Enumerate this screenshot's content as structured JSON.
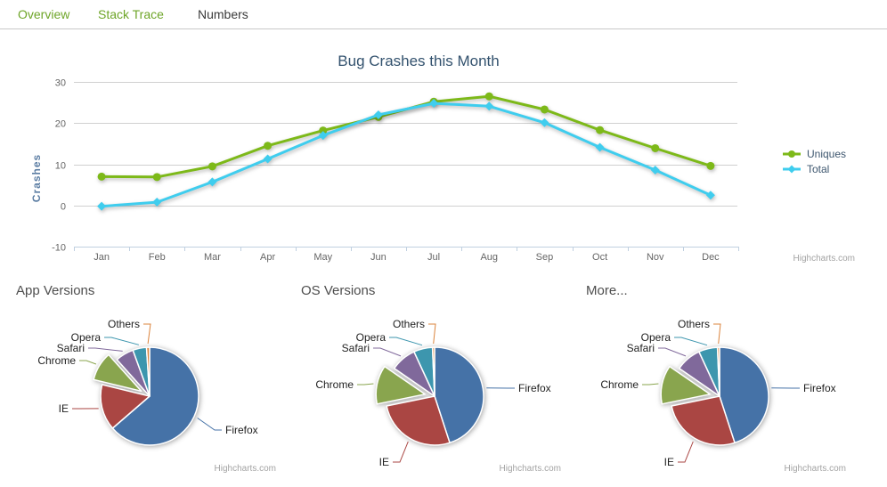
{
  "tabs": {
    "items": [
      {
        "label": "Overview",
        "active": true
      },
      {
        "label": "Stack Trace",
        "active": false
      },
      {
        "label": "Numbers",
        "active": false
      }
    ]
  },
  "colors": {
    "tab_link": "#6ea528",
    "series_green": "#7db919",
    "series_cyan": "#3fcdee",
    "grid_line": "#d0d0d0",
    "axis_line": "#c0d0e0",
    "title_text": "#33526e",
    "axis_label": "#666666"
  },
  "chart_data": [
    {
      "type": "line",
      "title": "Bug Crashes this Month",
      "xlabel": "",
      "ylabel": "Crashes",
      "categories": [
        "Jan",
        "Feb",
        "Mar",
        "Apr",
        "May",
        "Jun",
        "Jul",
        "Aug",
        "Sep",
        "Oct",
        "Nov",
        "Dec"
      ],
      "ylim": [
        -10,
        30
      ],
      "ytick_step": 10,
      "grid": true,
      "legend_position": "right",
      "credits": "Highcharts.com",
      "series": [
        {
          "name": "Uniques",
          "color": "#7db919",
          "marker": "circle",
          "values": [
            7.0,
            6.9,
            9.5,
            14.5,
            18.2,
            21.5,
            25.2,
            26.5,
            23.3,
            18.3,
            13.9,
            9.6
          ]
        },
        {
          "name": "Total",
          "color": "#3fcdee",
          "marker": "diamond",
          "values": [
            -0.2,
            0.8,
            5.7,
            11.3,
            17.0,
            22.0,
            24.8,
            24.1,
            20.1,
            14.1,
            8.6,
            2.5
          ]
        }
      ]
    },
    {
      "type": "pie",
      "title": "App Versions",
      "credits": "Highcharts.com",
      "slices": [
        {
          "name": "Firefox",
          "value": 63.0,
          "color": "#4572A7",
          "sliced": false
        },
        {
          "name": "IE",
          "value": 15.0,
          "color": "#AA4643",
          "sliced": false
        },
        {
          "name": "Chrome",
          "value": 9.5,
          "color": "#89A54E",
          "sliced": true
        },
        {
          "name": "Safari",
          "value": 6.0,
          "color": "#80699B",
          "sliced": false
        },
        {
          "name": "Opera",
          "value": 4.5,
          "color": "#3D96AE",
          "sliced": false
        },
        {
          "name": "Others",
          "value": 1.0,
          "color": "#DB843D",
          "sliced": false
        }
      ]
    },
    {
      "type": "pie",
      "title": "OS Versions",
      "credits": "Highcharts.com",
      "slices": [
        {
          "name": "Firefox",
          "value": 45.0,
          "color": "#4572A7",
          "sliced": false
        },
        {
          "name": "IE",
          "value": 26.8,
          "color": "#AA4643",
          "sliced": false
        },
        {
          "name": "Chrome",
          "value": 12.8,
          "color": "#89A54E",
          "sliced": true
        },
        {
          "name": "Safari",
          "value": 8.5,
          "color": "#80699B",
          "sliced": false
        },
        {
          "name": "Opera",
          "value": 6.2,
          "color": "#3D96AE",
          "sliced": false
        },
        {
          "name": "Others",
          "value": 0.7,
          "color": "#DB843D",
          "sliced": false
        }
      ]
    },
    {
      "type": "pie",
      "title": "More...",
      "credits": "Highcharts.com",
      "slices": [
        {
          "name": "Firefox",
          "value": 45.0,
          "color": "#4572A7",
          "sliced": false
        },
        {
          "name": "IE",
          "value": 26.8,
          "color": "#AA4643",
          "sliced": false
        },
        {
          "name": "Chrome",
          "value": 12.8,
          "color": "#89A54E",
          "sliced": true
        },
        {
          "name": "Safari",
          "value": 8.5,
          "color": "#80699B",
          "sliced": false
        },
        {
          "name": "Opera",
          "value": 6.2,
          "color": "#3D96AE",
          "sliced": false
        },
        {
          "name": "Others",
          "value": 0.7,
          "color": "#DB843D",
          "sliced": false
        }
      ]
    }
  ]
}
